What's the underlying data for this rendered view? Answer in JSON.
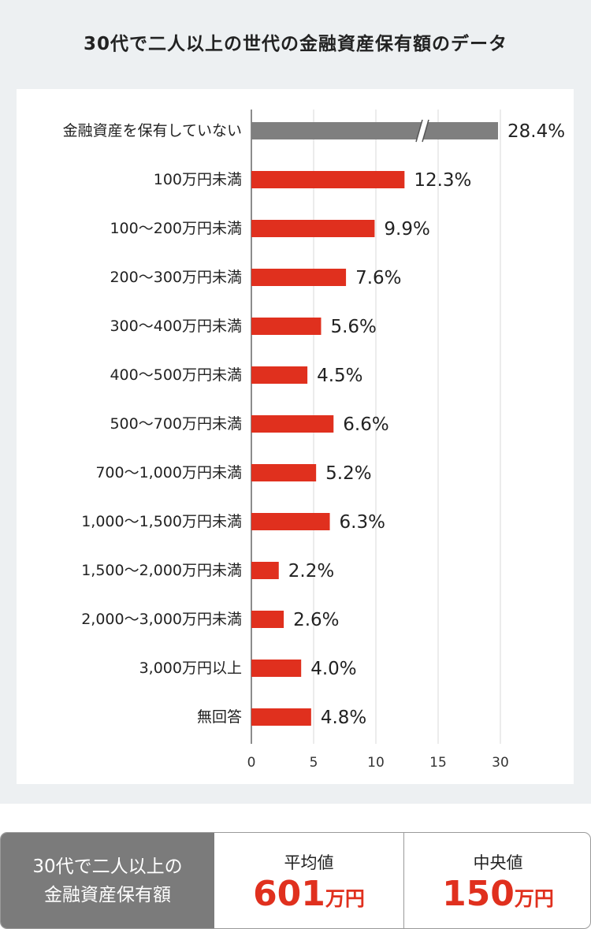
{
  "chart_data": {
    "type": "bar",
    "orientation": "horizontal",
    "title": "30代で二人以上の世代の金融資産保有額のデータ",
    "categories": [
      "金融資産を保有していない",
      "100万円未満",
      "100～200万円未満",
      "200～300万円未満",
      "300～400万円未満",
      "400～500万円未満",
      "500～700万円未満",
      "700～1,000万円未満",
      "1,000～1,500万円未満",
      "1,500～2,000万円未満",
      "2,000～3,000万円未満",
      "3,000万円以上",
      "無回答"
    ],
    "values": [
      28.4,
      12.3,
      9.9,
      7.6,
      5.6,
      4.5,
      6.6,
      5.2,
      6.3,
      2.2,
      2.6,
      4.0,
      4.8
    ],
    "value_labels": [
      "28.4%",
      "12.3%",
      "9.9%",
      "7.6%",
      "5.6%",
      "4.5%",
      "6.6%",
      "5.2%",
      "6.3%",
      "2.2%",
      "2.6%",
      "4.0%",
      "4.8%"
    ],
    "axis_broken_categories": [
      "金融資産を保有していない"
    ],
    "xticks": [
      0,
      5,
      10,
      15,
      30
    ],
    "grid": true,
    "colors": {
      "bar": "#e0301e",
      "bar_highlight": "#7f7f7f",
      "grid": "#d9d9d9",
      "axis": "#8c8c8c"
    }
  },
  "summary": {
    "label_line1": "30代で二人以上の",
    "label_line2": "金融資産保有額",
    "average": {
      "heading": "平均値",
      "number": "601",
      "unit": "万円"
    },
    "median": {
      "heading": "中央値",
      "number": "150",
      "unit": "万円"
    }
  }
}
